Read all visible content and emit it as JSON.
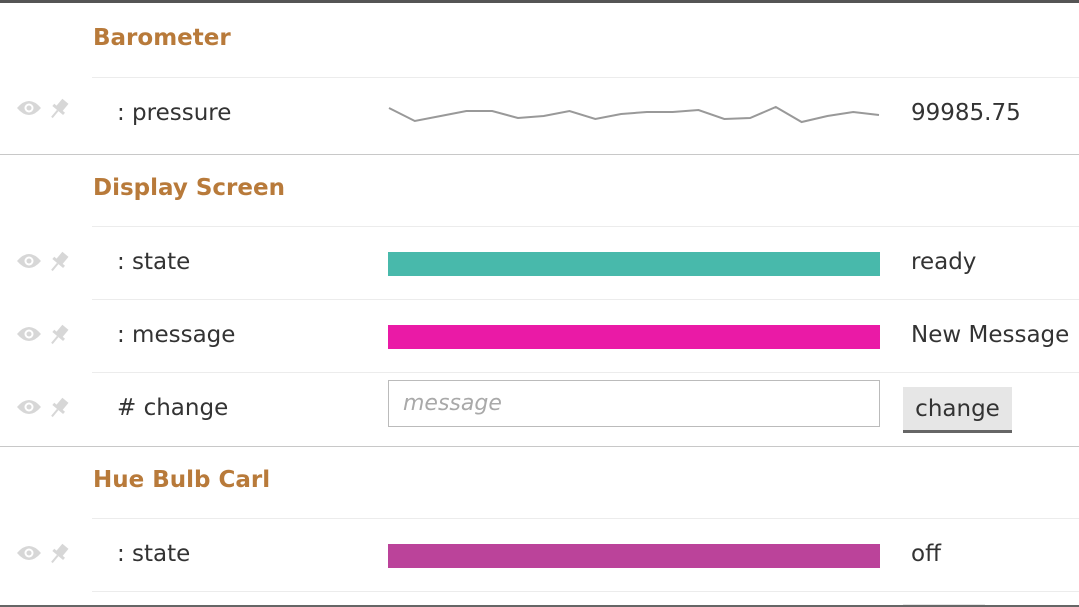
{
  "sections": [
    {
      "title": "Barometer",
      "rows": [
        {
          "label": ": pressure",
          "value": "99985.75",
          "display": "sparkline"
        }
      ]
    },
    {
      "title": "Display Screen",
      "rows": [
        {
          "label": ": state",
          "value": "ready",
          "display": "bar",
          "color": "#48b9ab"
        },
        {
          "label": ": message",
          "value": "New Message",
          "display": "bar",
          "color": "#ea1aa6"
        },
        {
          "label": "# change",
          "display": "input",
          "placeholder": "message",
          "button_label": "change"
        }
      ]
    },
    {
      "title": "Hue Bulb Carl",
      "rows": [
        {
          "label": ": state",
          "value": "off",
          "display": "bar",
          "color": "#bb439a"
        }
      ]
    }
  ],
  "icons": {
    "watch": "eye-icon",
    "pin": "pin-icon"
  },
  "colors": {
    "section_title": "#b87a3a",
    "icon": "#d7d7d7",
    "sparkline": "#999999"
  }
}
